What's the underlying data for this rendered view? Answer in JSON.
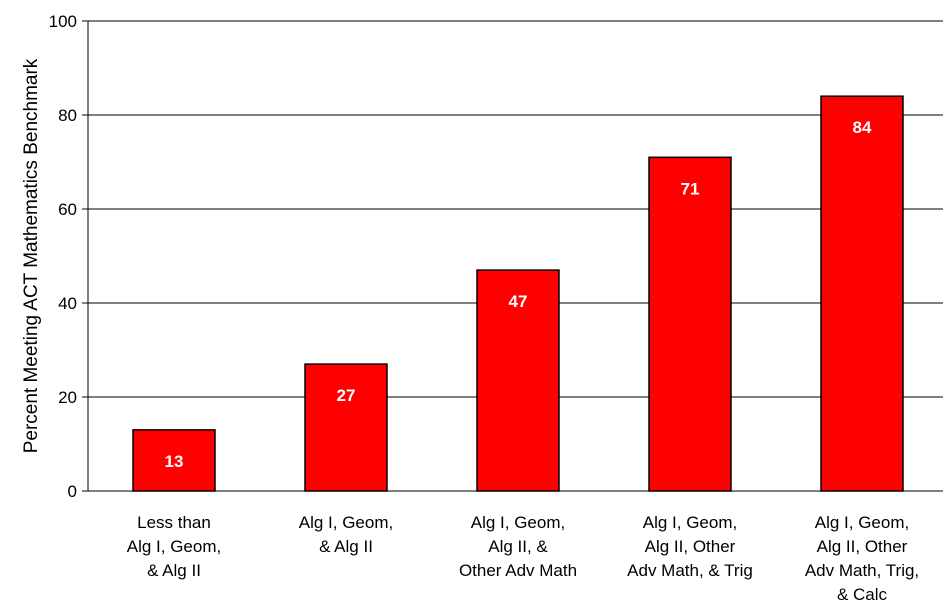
{
  "chart_data": {
    "type": "bar",
    "title": "",
    "xlabel": "",
    "ylabel": "Percent Meeting ACT Mathematics Benchmark",
    "ylim": [
      0,
      100
    ],
    "yticks": [
      "0",
      "20",
      "40",
      "60",
      "80",
      "100"
    ],
    "grid": true,
    "categories": [
      [
        "Less than",
        "Alg I, Geom,",
        "& Alg II"
      ],
      [
        "Alg I, Geom,",
        "& Alg II"
      ],
      [
        "Alg I, Geom,",
        "Alg II,  &",
        "Other Adv Math"
      ],
      [
        "Alg I, Geom,",
        "Alg II, Other",
        "Adv Math, & Trig"
      ],
      [
        "Alg I, Geom,",
        "Alg II, Other",
        "Adv Math, Trig,",
        "& Calc"
      ]
    ],
    "values": [
      13,
      27,
      47,
      71,
      84
    ],
    "data_labels": [
      "13",
      "27",
      "47",
      "71",
      "84"
    ],
    "colors": {
      "bar": "#ff0000",
      "bar_stroke": "#000000",
      "grid": "#000000"
    }
  }
}
